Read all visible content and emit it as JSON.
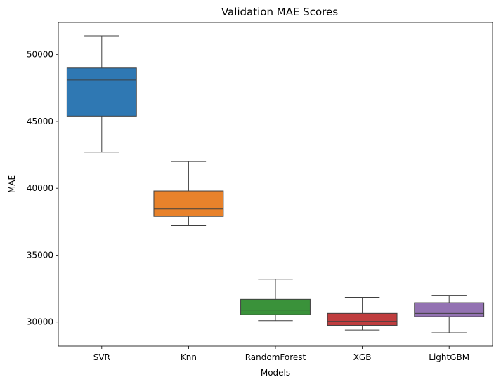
{
  "chart_data": {
    "type": "box",
    "title": "Validation MAE Scores",
    "xlabel": "Models",
    "ylabel": "MAE",
    "ylim": [
      28200,
      52400
    ],
    "yticks": [
      30000,
      35000,
      40000,
      45000,
      50000
    ],
    "grid": false,
    "categories": [
      "SVR",
      "Knn",
      "RandomForest",
      "XGB",
      "LightGBM"
    ],
    "series": [
      {
        "name": "SVR",
        "color": "#2f78b3",
        "min": 42700,
        "q1": 45400,
        "median": 48100,
        "q3": 49000,
        "max": 51400
      },
      {
        "name": "Knn",
        "color": "#e8822b",
        "min": 37200,
        "q1": 37900,
        "median": 38450,
        "q3": 39800,
        "max": 42000
      },
      {
        "name": "RandomForest",
        "color": "#3a923a",
        "min": 30100,
        "q1": 30550,
        "median": 30900,
        "q3": 31700,
        "max": 33200
      },
      {
        "name": "XGB",
        "color": "#c03d3e",
        "min": 29400,
        "q1": 29750,
        "median": 30050,
        "q3": 30650,
        "max": 31850
      },
      {
        "name": "LightGBM",
        "color": "#9372b2",
        "min": 29200,
        "q1": 30400,
        "median": 30650,
        "q3": 31450,
        "max": 32000
      }
    ]
  }
}
